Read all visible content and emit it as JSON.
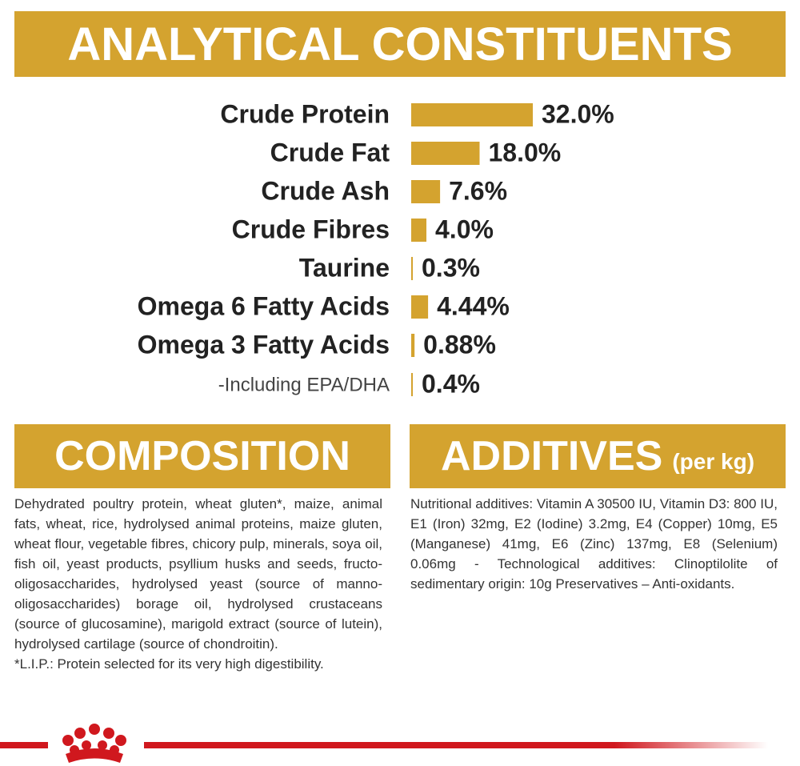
{
  "chart_data": {
    "type": "bar",
    "title": "ANALYTICAL CONSTITUENTS",
    "categories": [
      "Crude Protein",
      "Crude Fat",
      "Crude Ash",
      "Crude Fibres",
      "Taurine",
      "Omega 6 Fatty Acids",
      "Omega 3 Fatty Acids",
      "-Including EPA/DHA"
    ],
    "values": [
      32.0,
      18.0,
      7.6,
      4.0,
      0.3,
      4.44,
      0.88,
      0.4
    ],
    "value_labels": [
      "32.0%",
      "18.0%",
      "7.6%",
      "4.0%",
      "0.3%",
      "4.44%",
      "0.88%",
      "0.4%"
    ],
    "color": "#d4a32f"
  },
  "composition": {
    "title": "COMPOSITION",
    "text": "Dehydrated poultry protein, wheat gluten*, maize, animal fats, wheat, rice, hydrolysed animal proteins, maize gluten, wheat flour, vegetable fibres, chicory pulp, minerals, soya oil, fish oil, yeast products, psyllium husks and seeds, fructo-oligosaccharides, hydrolysed yeast (source of manno-oligosaccharides) borage oil, hydrolysed crustaceans (source of glucosamine), marigold extract (source of lutein), hydrolysed cartilage (source of chondroitin).",
    "note": "*L.I.P.: Protein selected for its very high digestibility."
  },
  "additives": {
    "title": "ADDITIVES",
    "unit": "(per kg)",
    "text": "Nutritional additives: Vitamin A 30500 IU, Vitamin D3: 800 IU, E1 (Iron) 32mg, E2 (Iodine) 3.2mg, E4 (Copper) 10mg, E5 (Manganese) 41mg, E6 (Zinc) 137mg, E8 (Selenium) 0.06mg - Technological additives: Clinoptilolite of sedimentary origin: 10g Preservatives – Anti-oxidants."
  }
}
